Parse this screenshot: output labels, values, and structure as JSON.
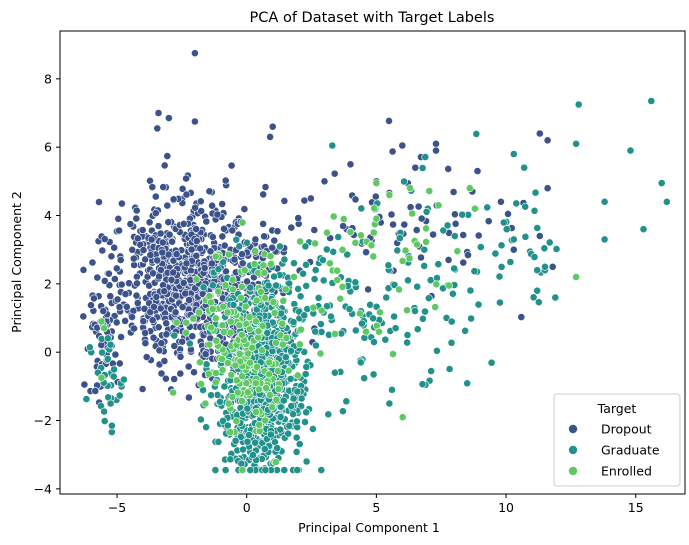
{
  "chart_data": {
    "type": "scatter",
    "title": "PCA of Dataset with Target Labels",
    "xlabel": "Principal Component 1",
    "ylabel": "Principal Component 2",
    "xlim": [
      -7.2,
      16.9
    ],
    "ylim": [
      -4.15,
      9.4
    ],
    "xticks": [
      -5,
      0,
      5,
      10,
      15
    ],
    "yticks": [
      -4,
      -2,
      0,
      2,
      4,
      6,
      8
    ],
    "grid": false,
    "legend": {
      "title": "Target",
      "placement": "lower-right"
    },
    "series": [
      {
        "name": "Dropout",
        "color": "#3b528b",
        "clusters": [
          {
            "cx": -2.5,
            "cy": 2.2,
            "sx": 1.3,
            "sy": 1.2,
            "n": 650
          },
          {
            "cx": -0.4,
            "cy": 1.5,
            "sx": 1.2,
            "sy": 1.2,
            "n": 260
          },
          {
            "cx": -5.6,
            "cy": 0.5,
            "sx": 0.35,
            "sy": 1.0,
            "n": 55
          },
          {
            "cx": 5.5,
            "cy": 3.8,
            "sx": 2.3,
            "sy": 0.9,
            "n": 70
          }
        ],
        "points": [
          [
            -2.0,
            8.75
          ],
          [
            -3.4,
            7.0
          ],
          [
            -3.0,
            6.85
          ],
          [
            -2.0,
            6.75
          ],
          [
            -3.45,
            6.55
          ],
          [
            1.0,
            6.6
          ],
          [
            0.9,
            6.3
          ],
          [
            6.0,
            6.05
          ],
          [
            7.3,
            6.1
          ],
          [
            7.3,
            5.9
          ],
          [
            11.3,
            6.4
          ],
          [
            11.6,
            6.2
          ],
          [
            11.6,
            4.8
          ],
          [
            11.8,
            2.5
          ],
          [
            11.3,
            3.4
          ],
          [
            8.9,
            5.3
          ],
          [
            4.0,
            5.5
          ],
          [
            5.0,
            5.0
          ],
          [
            6.5,
            5.4
          ],
          [
            3.0,
            5.0
          ],
          [
            8.7,
            4.7
          ],
          [
            9.8,
            4.4
          ],
          [
            10.3,
            3.0
          ]
        ]
      },
      {
        "name": "Graduate",
        "color": "#21918c",
        "clusters": [
          {
            "cx": 0.6,
            "cy": -1.3,
            "sx": 0.8,
            "sy": 1.2,
            "n": 620
          },
          {
            "cx": 0.6,
            "cy": 1.0,
            "sx": 1.1,
            "sy": 1.0,
            "n": 180
          },
          {
            "cx": 4.0,
            "cy": 1.2,
            "sx": 2.0,
            "sy": 1.3,
            "n": 110
          },
          {
            "cx": 9.0,
            "cy": 3.0,
            "sx": 1.8,
            "sy": 1.3,
            "n": 60
          },
          {
            "cx": -5.3,
            "cy": -0.6,
            "sx": 0.3,
            "sy": 0.8,
            "n": 35
          }
        ],
        "points": [
          [
            12.8,
            7.25
          ],
          [
            15.6,
            7.35
          ],
          [
            12.7,
            6.1
          ],
          [
            14.8,
            5.9
          ],
          [
            16.0,
            4.95
          ],
          [
            16.2,
            4.4
          ],
          [
            13.8,
            4.4
          ],
          [
            13.8,
            3.3
          ],
          [
            15.3,
            3.6
          ],
          [
            11.9,
            1.6
          ],
          [
            3.3,
            6.05
          ],
          [
            10.3,
            5.8
          ],
          [
            10.7,
            5.4
          ],
          [
            11.5,
            2.4
          ],
          [
            11.2,
            2.4
          ],
          [
            5.5,
            -1.5
          ],
          [
            5.6,
            -1.1
          ],
          [
            -5.2,
            -2.15
          ],
          [
            -5.25,
            -1.5
          ],
          [
            3.4,
            -0.6
          ],
          [
            4.4,
            -0.3
          ],
          [
            11.2,
            1.8
          ],
          [
            11.5,
            2.5
          ],
          [
            10.3,
            3.3
          ]
        ]
      },
      {
        "name": "Enrolled",
        "color": "#5ec962",
        "clusters": [
          {
            "cx": 0.0,
            "cy": 0.3,
            "sx": 1.0,
            "sy": 1.3,
            "n": 190
          },
          {
            "cx": 4.8,
            "cy": 2.8,
            "sx": 2.0,
            "sy": 1.2,
            "n": 45
          }
        ],
        "points": [
          [
            12.7,
            2.2
          ],
          [
            8.6,
            4.8
          ],
          [
            5.5,
            4.6
          ],
          [
            6.3,
            4.8
          ],
          [
            5.0,
            4.95
          ],
          [
            7.8,
            1.95
          ],
          [
            5.1,
            0.6
          ],
          [
            4.6,
            0.6
          ],
          [
            7.4,
            4.3
          ],
          [
            8.8,
            4.2
          ],
          [
            4.9,
            3.5
          ],
          [
            -5.6,
            -0.75
          ],
          [
            -5.6,
            0.9
          ],
          [
            -5.5,
            0.7
          ]
        ]
      }
    ]
  }
}
